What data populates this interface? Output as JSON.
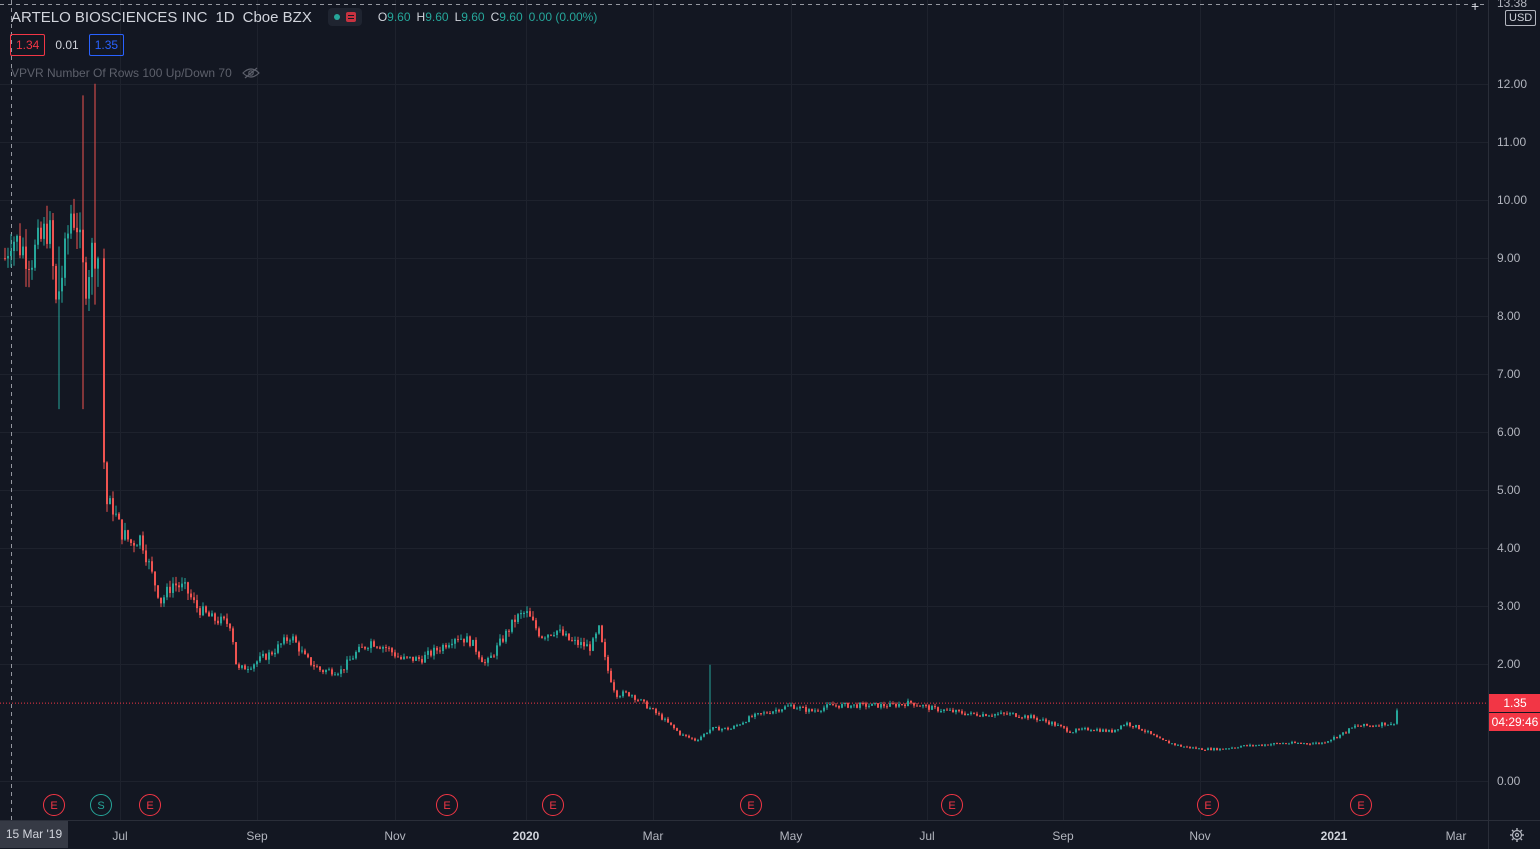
{
  "header": {
    "symbol_name": "ARTELO BIOSCIENCES INC",
    "interval": "1D",
    "exchange": "Cboe BZX",
    "ohlc": {
      "o_label": "O",
      "o_value": "9.60",
      "h_label": "H",
      "h_value": "9.60",
      "l_label": "L",
      "l_value": "9.60",
      "c_label": "C",
      "c_value": "9.60",
      "change": "0.00 (0.00%)"
    },
    "bid": "1.34",
    "spread": "0.01",
    "ask": "1.35",
    "indicator": "VPVR Number Of Rows 100 Up/Down 70"
  },
  "price_axis": {
    "currency": "USD",
    "top_label": "13.38",
    "labels": [
      "12.00",
      "11.00",
      "10.00",
      "9.00",
      "8.00",
      "7.00",
      "6.00",
      "5.00",
      "4.00",
      "3.00",
      "2.00",
      "0.00"
    ],
    "last_price": "1.35",
    "countdown": "04:29:46"
  },
  "time_axis": {
    "crosshair_date": "15 Mar '19",
    "labels": [
      {
        "text": "Jul",
        "year": false
      },
      {
        "text": "Sep",
        "year": false
      },
      {
        "text": "Nov",
        "year": false
      },
      {
        "text": "2020",
        "year": true
      },
      {
        "text": "Mar",
        "year": false
      },
      {
        "text": "May",
        "year": false
      },
      {
        "text": "Jul",
        "year": false
      },
      {
        "text": "Sep",
        "year": false
      },
      {
        "text": "Nov",
        "year": false
      },
      {
        "text": "2021",
        "year": true
      },
      {
        "text": "Mar",
        "year": false
      }
    ]
  },
  "events": [
    {
      "type": "E"
    },
    {
      "type": "S"
    },
    {
      "type": "E"
    },
    {
      "type": "E"
    },
    {
      "type": "E"
    },
    {
      "type": "E"
    },
    {
      "type": "E"
    },
    {
      "type": "E"
    },
    {
      "type": "E"
    }
  ],
  "colors": {
    "up": "#26a69a",
    "down": "#ef5350",
    "background": "#131722",
    "grid": "#1e222d",
    "last_price_line": "#f23645"
  },
  "chart_data": {
    "type": "candlestick",
    "y_range": [
      0,
      13.38
    ],
    "key_points": [
      {
        "period": "Mar 2019",
        "price": 9.6
      },
      {
        "period": "Jun 2019",
        "price": 4.8
      },
      {
        "period": "Jul 2019",
        "price": 3.2
      },
      {
        "period": "Aug 2019",
        "price": 2.6
      },
      {
        "period": "Sep 2019",
        "price": 2.0
      },
      {
        "period": "Dec 2019",
        "price": 2.6
      },
      {
        "period": "Feb 2020",
        "price": 2.2
      },
      {
        "period": "Mar 2020",
        "price": 0.9
      },
      {
        "period": "Jun 2020",
        "price": 1.3
      },
      {
        "period": "Sep 2020",
        "price": 0.9
      },
      {
        "period": "Nov 2020",
        "price": 0.55
      },
      {
        "period": "Jan 2021",
        "price": 0.8
      },
      {
        "period": "Feb 2021",
        "price": 1.35
      }
    ]
  }
}
